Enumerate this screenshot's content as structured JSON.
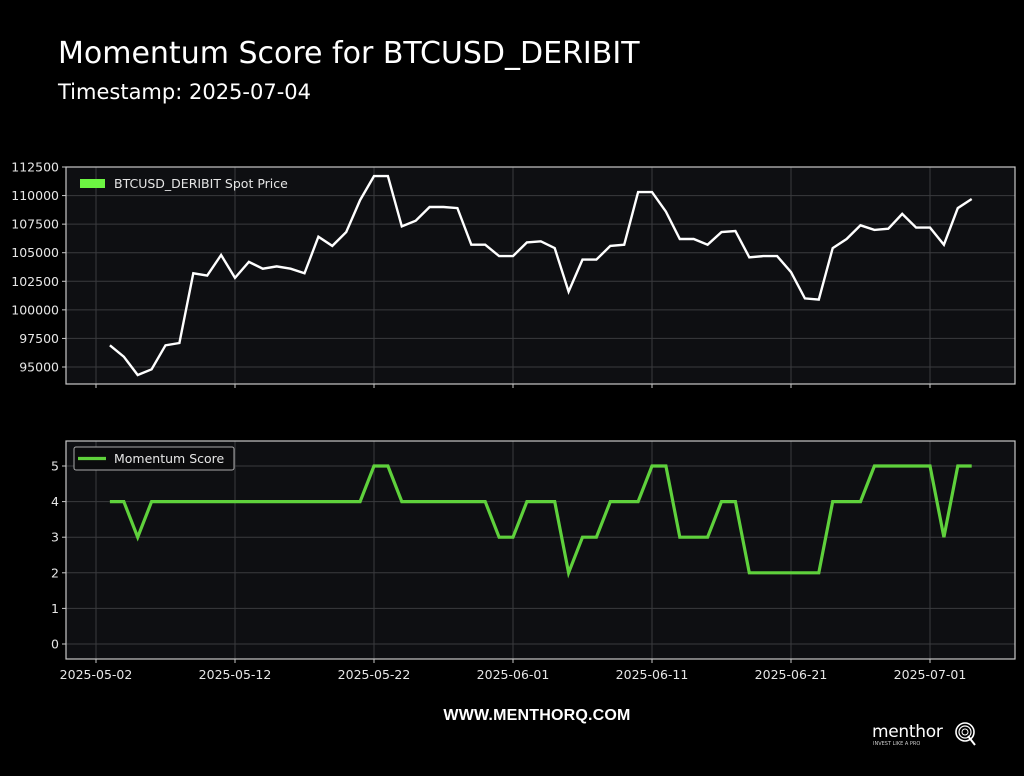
{
  "header": {
    "title": "Momentum Score for BTCUSD_DERIBIT",
    "subtitle": "Timestamp: 2025-07-04"
  },
  "footer": {
    "url": "WWW.MENTHORQ.COM",
    "logo_text": "menthor",
    "logo_letter": "Q",
    "logo_tagline": "INVEST LIKE A PRO"
  },
  "colors": {
    "background": "#000000",
    "plot_background": "#0e0f12",
    "price_line": "#ffffff",
    "momentum_line": "#5fd13c",
    "legend_patch": "#6cf542",
    "grid": "#3a3b3e",
    "axis": "#c8c8c8"
  },
  "chart_data": [
    {
      "type": "line",
      "title": "Momentum Score for BTCUSD_DERIBIT",
      "subtitle": "Timestamp: 2025-07-04",
      "legend": [
        "BTCUSD_DERIBIT Spot Price"
      ],
      "legend_position": "upper left",
      "xlabel": "",
      "ylabel": "",
      "ylim": [
        93500,
        112500
      ],
      "yticks": [
        95000,
        97500,
        100000,
        102500,
        105000,
        107500,
        110000,
        112500
      ],
      "xticks": [
        "2025-05-02",
        "2025-05-12",
        "2025-05-22",
        "2025-06-01",
        "2025-06-11",
        "2025-06-21",
        "2025-07-01"
      ],
      "grid": true,
      "x": [
        "2025-05-03",
        "2025-05-04",
        "2025-05-05",
        "2025-05-06",
        "2025-05-07",
        "2025-05-08",
        "2025-05-09",
        "2025-05-10",
        "2025-05-11",
        "2025-05-12",
        "2025-05-13",
        "2025-05-14",
        "2025-05-15",
        "2025-05-16",
        "2025-05-17",
        "2025-05-18",
        "2025-05-19",
        "2025-05-20",
        "2025-05-21",
        "2025-05-22",
        "2025-05-23",
        "2025-05-24",
        "2025-05-25",
        "2025-05-26",
        "2025-05-27",
        "2025-05-28",
        "2025-05-29",
        "2025-05-30",
        "2025-05-31",
        "2025-06-01",
        "2025-06-02",
        "2025-06-03",
        "2025-06-04",
        "2025-06-05",
        "2025-06-06",
        "2025-06-07",
        "2025-06-08",
        "2025-06-09",
        "2025-06-10",
        "2025-06-11",
        "2025-06-12",
        "2025-06-13",
        "2025-06-14",
        "2025-06-15",
        "2025-06-16",
        "2025-06-17",
        "2025-06-18",
        "2025-06-19",
        "2025-06-20",
        "2025-06-21",
        "2025-06-22",
        "2025-06-23",
        "2025-06-24",
        "2025-06-25",
        "2025-06-26",
        "2025-06-27",
        "2025-06-28",
        "2025-06-29",
        "2025-06-30",
        "2025-07-01",
        "2025-07-02",
        "2025-07-03",
        "2025-07-04"
      ],
      "series": [
        {
          "name": "BTCUSD_DERIBIT Spot Price",
          "values": [
            96900,
            95900,
            94300,
            94800,
            96900,
            97100,
            103200,
            103000,
            104800,
            102800,
            104200,
            103600,
            103800,
            103600,
            103200,
            106400,
            105600,
            106800,
            109600,
            111700,
            111700,
            107300,
            107800,
            109000,
            109000,
            108900,
            105700,
            105700,
            104700,
            104700,
            105900,
            106000,
            105400,
            101600,
            104400,
            104400,
            105600,
            105700,
            110300,
            110300,
            108600,
            106200,
            106200,
            105700,
            106800,
            106900,
            104600,
            104700,
            104700,
            103300,
            101000,
            100900,
            105400,
            106200,
            107400,
            107000,
            107100,
            108400,
            107200,
            107200,
            105700,
            108900,
            109700
          ]
        }
      ]
    },
    {
      "type": "line",
      "legend": [
        "Momentum Score"
      ],
      "legend_position": "upper left",
      "xlabel": "",
      "ylabel": "",
      "ylim": [
        -0.25,
        5.7
      ],
      "yticks": [
        0,
        1,
        2,
        3,
        4,
        5
      ],
      "xticks": [
        "2025-05-02",
        "2025-05-12",
        "2025-05-22",
        "2025-06-01",
        "2025-06-11",
        "2025-06-21",
        "2025-07-01"
      ],
      "grid": true,
      "series": [
        {
          "name": "Momentum Score",
          "values": [
            4,
            4,
            3,
            4,
            4,
            4,
            4,
            4,
            4,
            4,
            4,
            4,
            4,
            4,
            4,
            4,
            4,
            4,
            4,
            5,
            5,
            4,
            4,
            4,
            4,
            4,
            4,
            4,
            3,
            3,
            4,
            4,
            4,
            2,
            3,
            3,
            4,
            4,
            4,
            5,
            5,
            3,
            3,
            3,
            4,
            4,
            2,
            2,
            2,
            2,
            2,
            2,
            4,
            4,
            4,
            5,
            5,
            5,
            5,
            5,
            3,
            5,
            5
          ]
        }
      ]
    }
  ]
}
